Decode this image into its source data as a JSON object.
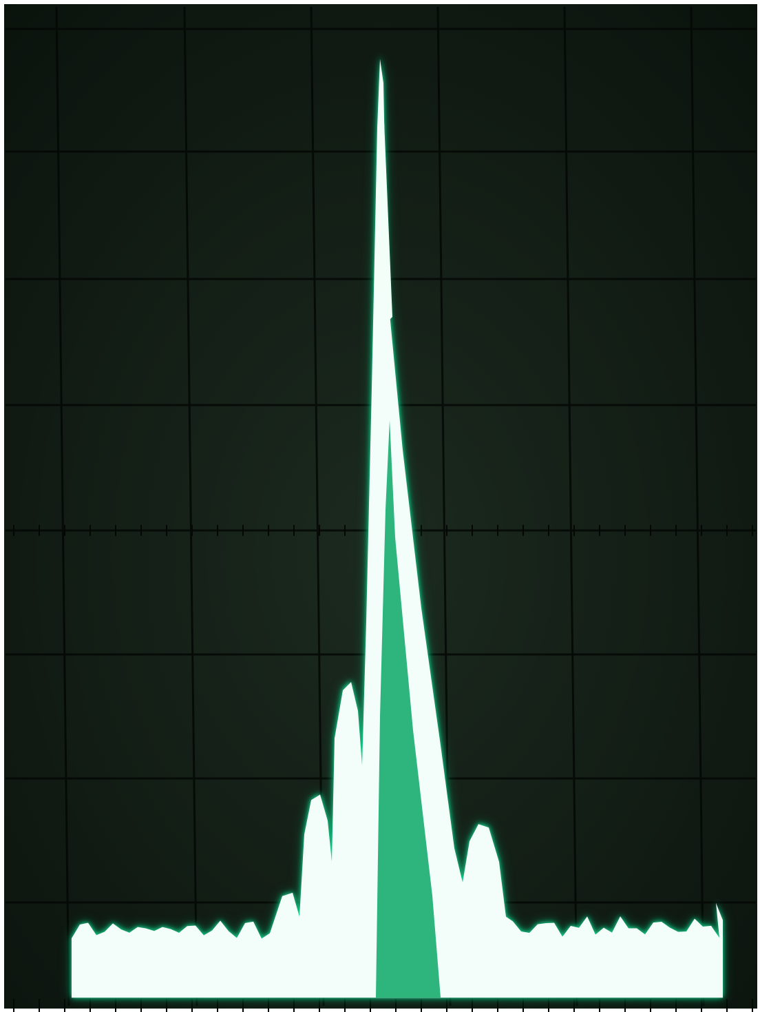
{
  "photo": {
    "subject": "oscilloscope-spectrum-display",
    "colors": {
      "screen_background": "#0f1a12",
      "graticule_line": "#050805",
      "trace_core": "#ffffff",
      "trace_glow": "#18e39a",
      "trace_halo": "#0aa866",
      "frame": "#ffffff"
    },
    "graticule": {
      "vertical_divisions": 8,
      "horizontal_divisions": 10
    }
  }
}
